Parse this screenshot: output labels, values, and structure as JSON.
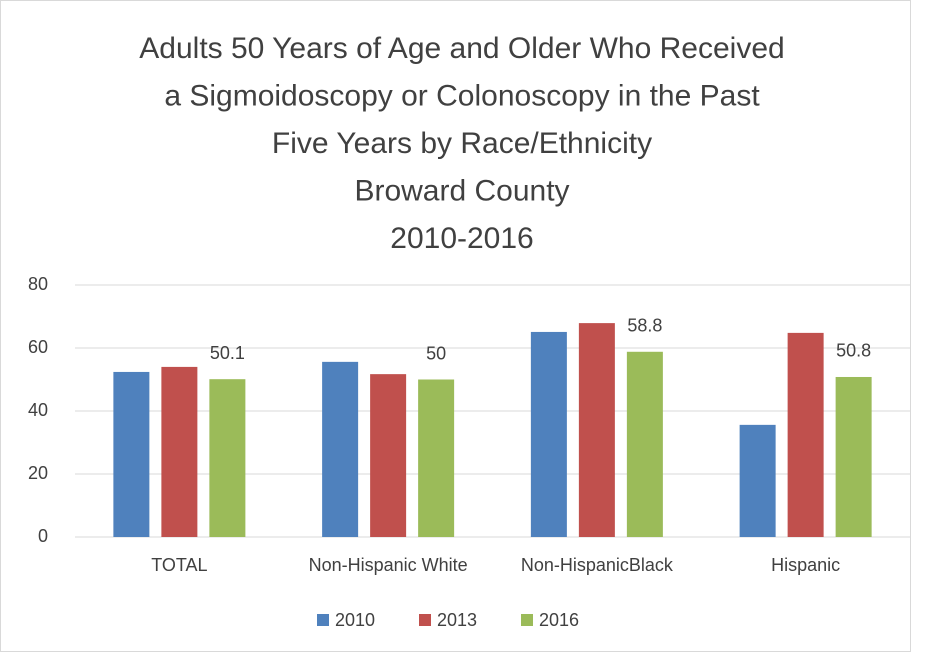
{
  "chart_data": {
    "type": "bar",
    "title": [
      "Adults 50 Years of Age and Older Who Received",
      "a Sigmoidoscopy or Colonoscopy in the Past",
      "Five Years by Race/Ethnicity",
      "Broward County",
      "2010-2016"
    ],
    "categories": [
      "TOTAL",
      "Non-Hispanic White",
      "Non-HispanicBlack",
      "Hispanic"
    ],
    "series": [
      {
        "name": "2010",
        "color": "#4f81bd",
        "values": [
          52.4,
          55.6,
          65.1,
          35.6
        ],
        "data_labels": false
      },
      {
        "name": "2013",
        "color": "#c0504d",
        "values": [
          54.0,
          51.7,
          67.9,
          64.8
        ],
        "data_labels": false
      },
      {
        "name": "2016",
        "color": "#9bbb59",
        "values": [
          50.1,
          50,
          58.8,
          50.8
        ],
        "data_labels": true
      }
    ],
    "ylim": [
      0,
      80
    ],
    "yticks": [
      0,
      20,
      40,
      60,
      80
    ],
    "grid": true,
    "legend": "bottom"
  }
}
